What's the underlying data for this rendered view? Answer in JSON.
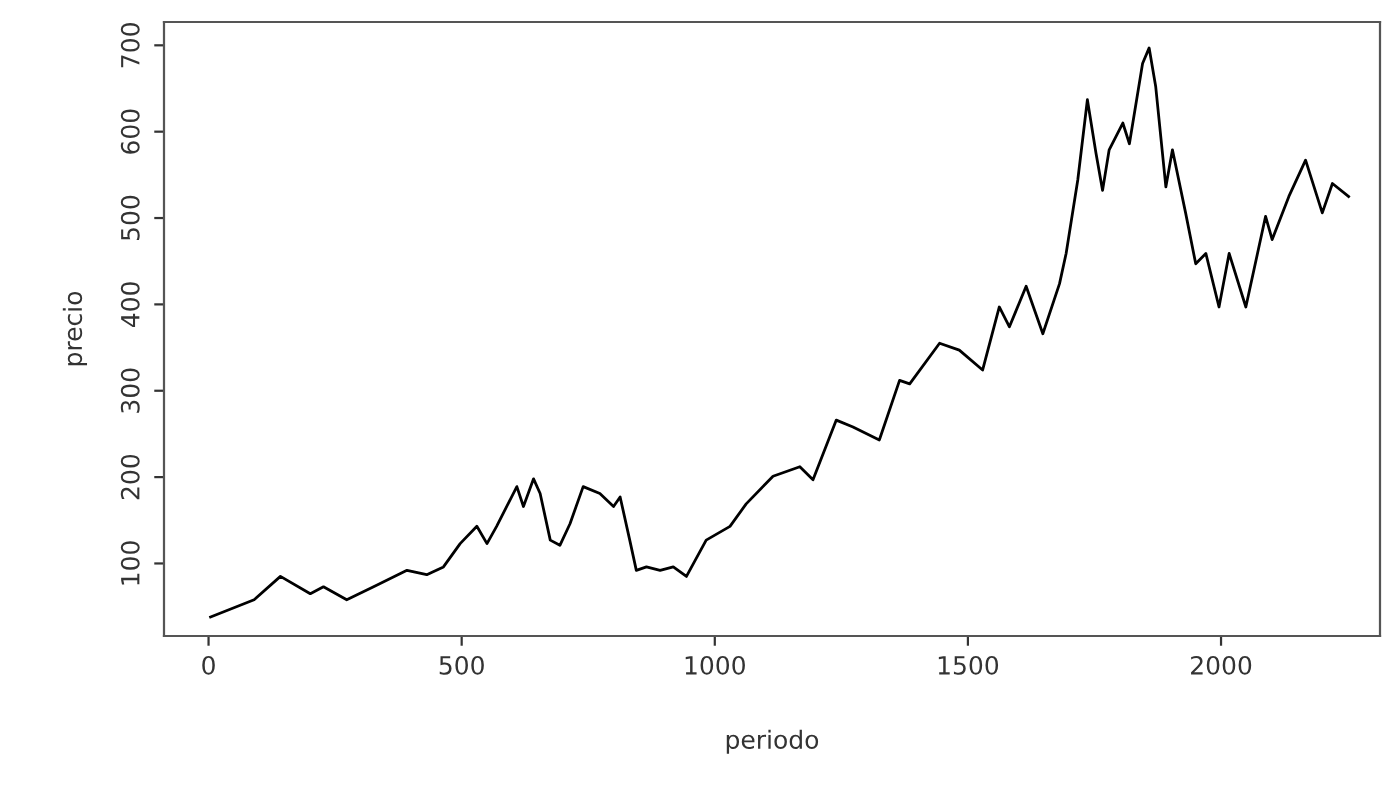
{
  "chart_data": {
    "type": "line",
    "xlabel": "periodo",
    "ylabel": "precio",
    "xlim": [
      -88,
      2314
    ],
    "ylim": [
      16,
      727
    ],
    "xticks": [
      0,
      500,
      1000,
      1500,
      2000
    ],
    "yticks": [
      100,
      200,
      300,
      400,
      500,
      600,
      700
    ],
    "grid": false,
    "legend": false,
    "marker": "none",
    "line_style": "solid",
    "series": [
      {
        "color": "#000000",
        "x": [
          4,
          90,
          142,
          201,
          227,
          273,
          326,
          392,
          431,
          464,
          497,
          530,
          550,
          569,
          609,
          622,
          642,
          655,
          675,
          694,
          714,
          740,
          773,
          800,
          813,
          832,
          845,
          865,
          892,
          918,
          944,
          983,
          1030,
          1062,
          1115,
          1168,
          1194,
          1240,
          1273,
          1325,
          1365,
          1385,
          1444,
          1483,
          1529,
          1562,
          1582,
          1615,
          1648,
          1681,
          1694,
          1717,
          1736,
          1753,
          1766,
          1779,
          1806,
          1819,
          1845,
          1858,
          1871,
          1891,
          1904,
          1930,
          1950,
          1970,
          1996,
          2016,
          2049,
          2088,
          2101,
          2134,
          2167,
          2200,
          2220,
          2252
        ],
        "values": [
          38,
          58,
          85,
          65,
          73,
          58,
          73,
          92,
          87,
          96,
          123,
          143,
          123,
          143,
          189,
          166,
          198,
          181,
          127,
          121,
          146,
          189,
          181,
          166,
          177,
          127,
          92,
          96,
          92,
          96,
          85,
          127,
          143,
          169,
          201,
          212,
          197,
          266,
          258,
          243,
          312,
          308,
          355,
          347,
          324,
          397,
          374,
          421,
          366,
          424,
          459,
          544,
          637,
          575,
          532,
          579,
          610,
          586,
          679,
          697,
          652,
          536,
          579,
          506,
          447,
          459,
          397,
          459,
          397,
          502,
          475,
          525,
          567,
          506,
          540,
          525
        ]
      }
    ]
  }
}
